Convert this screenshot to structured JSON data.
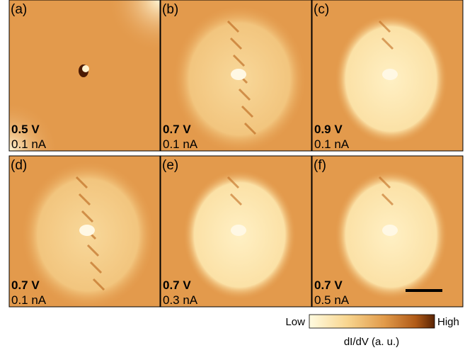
{
  "panels": [
    {
      "label": "(a)",
      "bias": "0.5 V",
      "current": "0.1 nA"
    },
    {
      "label": "(b)",
      "bias": "0.7 V",
      "current": "0.1 nA"
    },
    {
      "label": "(c)",
      "bias": "0.9 V",
      "current": "0.1 nA"
    },
    {
      "label": "(d)",
      "bias": "0.7 V",
      "current": "0.1 nA"
    },
    {
      "label": "(e)",
      "bias": "0.7 V",
      "current": "0.3 nA"
    },
    {
      "label": "(f)",
      "bias": "0.7 V",
      "current": "0.5 nA"
    }
  ],
  "colorbar": {
    "low": "Low",
    "high": "High",
    "label": "dI/dV (a. u.)"
  }
}
